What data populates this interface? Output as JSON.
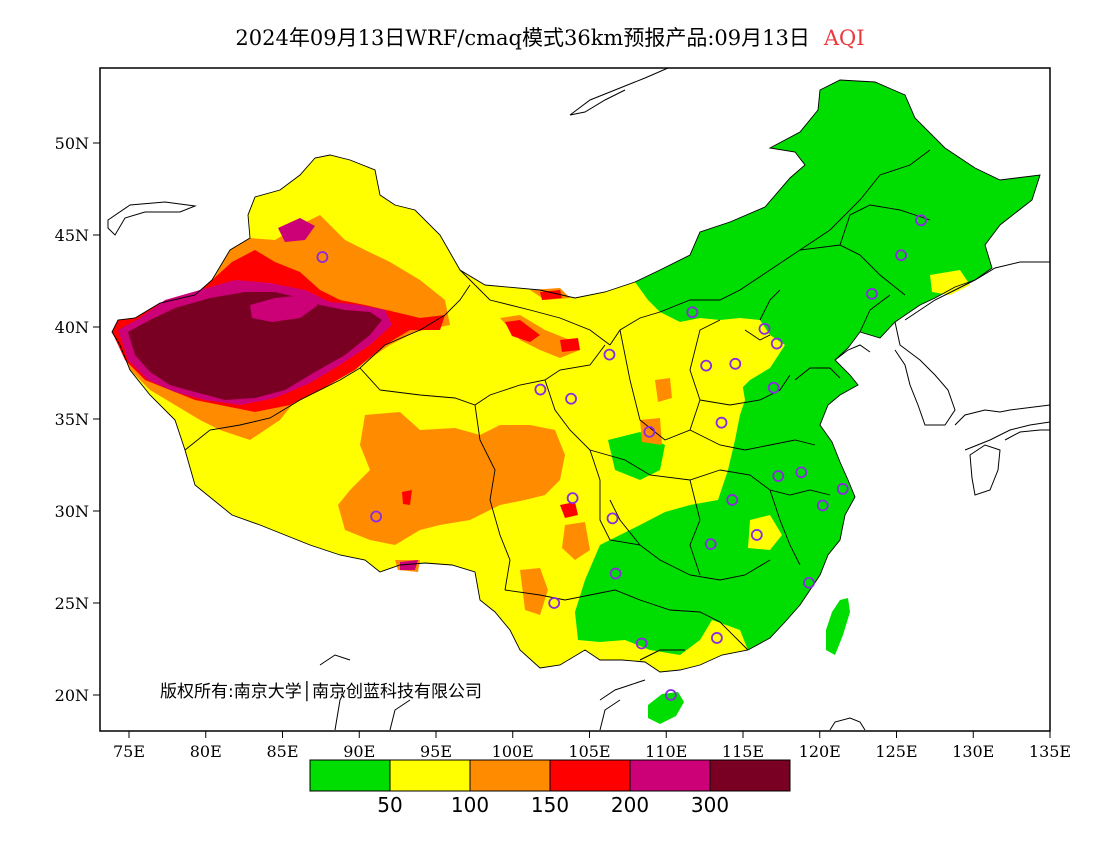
{
  "title": {
    "main": "2024年09月13日WRF/cmaq模式36km预报产品:09月13日",
    "variable": "AQI"
  },
  "axes": {
    "x_ticks": [
      "75E",
      "80E",
      "85E",
      "90E",
      "95E",
      "100E",
      "105E",
      "110E",
      "115E",
      "120E",
      "125E",
      "130E",
      "135E"
    ],
    "y_ticks": [
      "50N",
      "45N",
      "40N",
      "35N",
      "30N",
      "25N",
      "20N"
    ]
  },
  "copyright": "版权所有:南京大学│南京创蓝科技有限公司",
  "legend": {
    "colors": [
      "#00dd00",
      "#ffff00",
      "#ff8c00",
      "#ff0000",
      "#cc0077",
      "#7a0023"
    ],
    "labels": [
      "50",
      "100",
      "150",
      "200",
      "300"
    ]
  },
  "stations": [
    [
      87.6,
      43.8
    ],
    [
      91.1,
      29.7
    ],
    [
      101.8,
      36.6
    ],
    [
      103.8,
      36.1
    ],
    [
      106.3,
      38.5
    ],
    [
      103.9,
      30.7
    ],
    [
      102.7,
      25.0
    ],
    [
      106.7,
      26.6
    ],
    [
      106.5,
      29.6
    ],
    [
      108.4,
      22.8
    ],
    [
      110.3,
      20.0
    ],
    [
      113.3,
      23.1
    ],
    [
      112.9,
      28.2
    ],
    [
      115.9,
      28.7
    ],
    [
      114.3,
      30.6
    ],
    [
      117.3,
      31.9
    ],
    [
      118.8,
      32.1
    ],
    [
      120.2,
      30.3
    ],
    [
      121.5,
      31.2
    ],
    [
      119.3,
      26.1
    ],
    [
      108.9,
      34.3
    ],
    [
      113.6,
      34.8
    ],
    [
      117.0,
      36.7
    ],
    [
      114.5,
      38.0
    ],
    [
      112.6,
      37.9
    ],
    [
      111.7,
      40.8
    ],
    [
      116.4,
      39.9
    ],
    [
      117.2,
      39.1
    ],
    [
      123.4,
      41.8
    ],
    [
      125.3,
      43.9
    ],
    [
      126.6,
      45.8
    ]
  ]
}
